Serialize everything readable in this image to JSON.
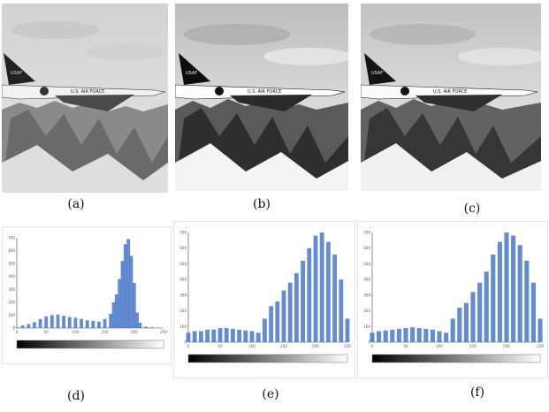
{
  "captions": [
    "(a)",
    "(b)",
    "(c)",
    "(d)",
    "(e)",
    "(f)"
  ],
  "jet_markings": {
    "tail_text": "USAF",
    "fuselage_text": "U.S. AIR FORCE"
  },
  "chart_data": [
    {
      "type": "bar",
      "panel": "(d)",
      "xlim": [
        0,
        250
      ],
      "ylim": [
        0,
        700
      ],
      "xticks": [
        "0",
        "50",
        "100",
        "150",
        "200",
        "250"
      ],
      "yticks": [
        "0",
        "100",
        "200",
        "300",
        "400",
        "500",
        "600",
        "700"
      ],
      "x": [
        0,
        10,
        20,
        30,
        40,
        50,
        60,
        70,
        80,
        90,
        100,
        110,
        120,
        130,
        140,
        150,
        160,
        165,
        170,
        175,
        180,
        185,
        190,
        195,
        200,
        205,
        210,
        220,
        230,
        240
      ],
      "values": [
        5,
        20,
        30,
        45,
        70,
        90,
        100,
        105,
        95,
        85,
        80,
        70,
        60,
        55,
        50,
        70,
        110,
        200,
        260,
        380,
        520,
        650,
        690,
        560,
        350,
        120,
        40,
        10,
        5,
        2
      ]
    },
    {
      "type": "bar",
      "panel": "(e)",
      "xlim": [
        0,
        250
      ],
      "ylim": [
        0,
        700
      ],
      "xticks": [
        "0",
        "50",
        "100",
        "150",
        "200",
        "250"
      ],
      "yticks": [
        "0",
        "100",
        "200",
        "300",
        "400",
        "500",
        "600",
        "700"
      ],
      "x": [
        0,
        10,
        20,
        30,
        40,
        50,
        60,
        70,
        80,
        90,
        100,
        110,
        120,
        130,
        140,
        150,
        160,
        170,
        180,
        190,
        200,
        210,
        220,
        230,
        240,
        250
      ],
      "values": [
        60,
        70,
        70,
        80,
        80,
        90,
        90,
        85,
        80,
        75,
        70,
        60,
        150,
        230,
        260,
        330,
        380,
        440,
        520,
        600,
        680,
        700,
        640,
        560,
        400,
        150
      ]
    },
    {
      "type": "bar",
      "panel": "(f)",
      "xlim": [
        0,
        250
      ],
      "ylim": [
        0,
        700
      ],
      "xticks": [
        "0",
        "50",
        "100",
        "150",
        "200",
        "250"
      ],
      "yticks": [
        "0",
        "100",
        "200",
        "300",
        "400",
        "500",
        "600",
        "700"
      ],
      "x": [
        0,
        10,
        20,
        30,
        40,
        50,
        60,
        70,
        80,
        90,
        100,
        110,
        120,
        130,
        140,
        150,
        160,
        170,
        180,
        190,
        200,
        210,
        220,
        230,
        240,
        250
      ],
      "values": [
        60,
        70,
        75,
        80,
        85,
        90,
        95,
        90,
        85,
        80,
        70,
        60,
        150,
        220,
        250,
        320,
        380,
        450,
        560,
        640,
        700,
        680,
        620,
        520,
        380,
        150
      ]
    }
  ]
}
